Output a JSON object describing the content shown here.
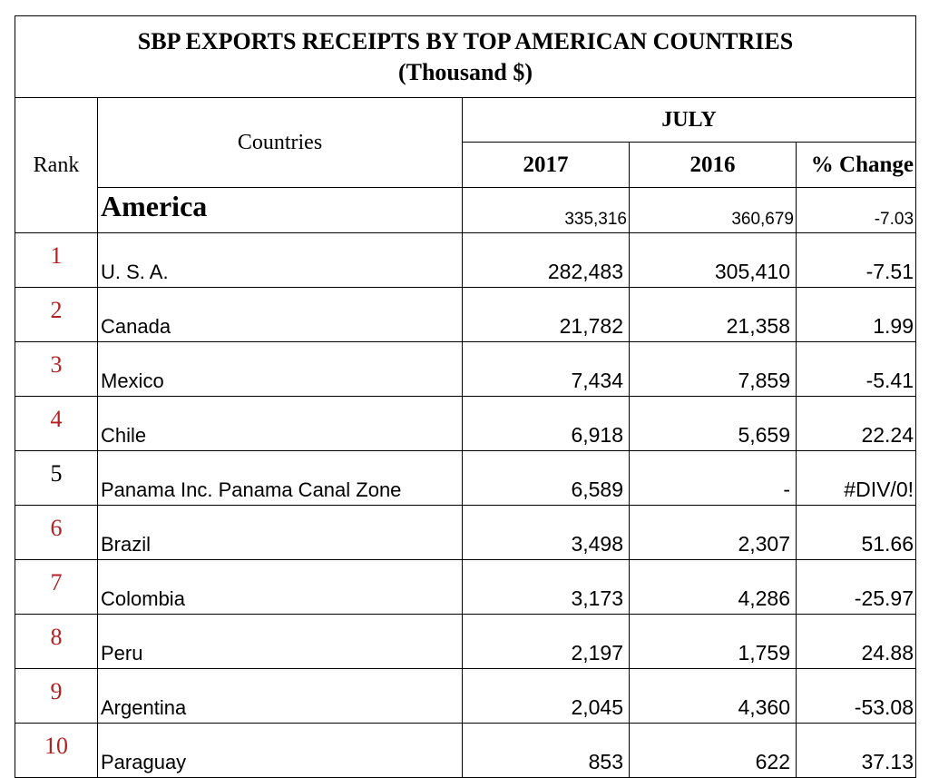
{
  "title": {
    "line1": "SBP EXPORTS RECEIPTS BY TOP AMERICAN COUNTRIES",
    "line2": "(Thousand $)"
  },
  "headers": {
    "rank": "Rank",
    "countries": "Countries",
    "month": "JULY",
    "year1": "2017",
    "year2": "2016",
    "change": "% Change"
  },
  "region_total": {
    "name": "America",
    "y2017": "335,316",
    "y2016": "360,679",
    "change": "-7.03"
  },
  "rows": [
    {
      "rank": "1",
      "country": "U. S. A.",
      "y2017": "282,483",
      "y2016": "305,410",
      "change": "-7.51"
    },
    {
      "rank": "2",
      "country": "Canada",
      "y2017": "21,782",
      "y2016": "21,358",
      "change": "1.99"
    },
    {
      "rank": "3",
      "country": "Mexico",
      "y2017": "7,434",
      "y2016": "7,859",
      "change": "-5.41"
    },
    {
      "rank": "4",
      "country": "Chile",
      "y2017": "6,918",
      "y2016": "5,659",
      "change": "22.24"
    },
    {
      "rank": "5",
      "country": "Panama Inc. Panama Canal Zone",
      "y2017": "6,589",
      "y2016": "-",
      "change": "#DIV/0!"
    },
    {
      "rank": "6",
      "country": "Brazil",
      "y2017": "3,498",
      "y2016": "2,307",
      "change": "51.66"
    },
    {
      "rank": "7",
      "country": "Colombia",
      "y2017": "3,173",
      "y2016": "4,286",
      "change": "-25.97"
    },
    {
      "rank": "8",
      "country": "Peru",
      "y2017": "2,197",
      "y2016": "1,759",
      "change": "24.88"
    },
    {
      "rank": "9",
      "country": "Argentina",
      "y2017": "2,045",
      "y2016": "4,360",
      "change": "-53.08"
    },
    {
      "rank": "10",
      "country": "Paraguay",
      "y2017": "853",
      "y2016": "622",
      "change": "37.13"
    }
  ],
  "colors": {
    "rank_accent": "#b22222",
    "rank_plain": "#000000"
  }
}
